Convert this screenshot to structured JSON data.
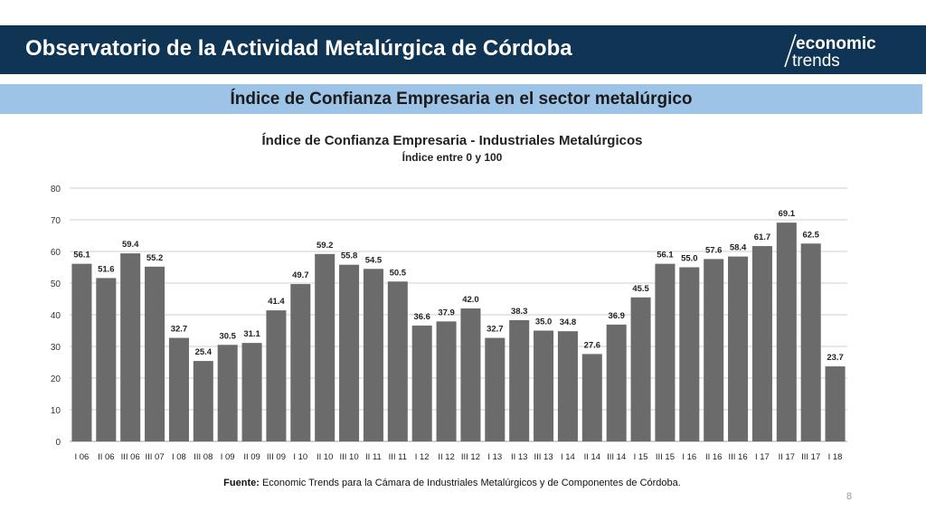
{
  "header": {
    "title": "Observatorio de la Actividad Metalúrgica de Córdoba",
    "logo_top": "economic",
    "logo_bottom": "trends"
  },
  "section_title": "Índice de Confianza Empresaria en el sector metalúrgico",
  "footer": {
    "source_label": "Fuente:",
    "source_text": "Economic Trends para la Cámara de Industriales Metalúrgicos y de Componentes de Córdoba.",
    "page_number": "8"
  },
  "colors": {
    "header_bg": "#0f3454",
    "subtitle_bg": "#9dc3e6",
    "bar": "#6b6b6b"
  },
  "chart_data": {
    "type": "bar",
    "title": "Índice de Confianza Empresaria - Industriales Metalúrgicos",
    "subtitle": "Índice entre 0 y 100",
    "xlabel": "",
    "ylabel": "",
    "ylim": [
      0,
      80
    ],
    "yticks": [
      0,
      10,
      20,
      30,
      40,
      50,
      60,
      70,
      80
    ],
    "grid": true,
    "legend": "none",
    "categories": [
      "I 06",
      "II 06",
      "III 06",
      "III 07",
      "I 08",
      "III 08",
      "I 09",
      "II 09",
      "III 09",
      "I 10",
      "II 10",
      "III 10",
      "II 11",
      "III 11",
      "I 12",
      "II 12",
      "III 12",
      "I 13",
      "II 13",
      "III 13",
      "I 14",
      "II 14",
      "III 14",
      "I 15",
      "III 15",
      "I 16",
      "II 16",
      "III 16",
      "I 17",
      "II 17",
      "III 17",
      "I 18"
    ],
    "values": [
      56.1,
      51.6,
      59.4,
      55.2,
      32.7,
      25.4,
      30.5,
      31.1,
      41.4,
      49.7,
      59.2,
      55.8,
      54.5,
      50.5,
      36.6,
      37.9,
      42.0,
      32.7,
      38.3,
      35.0,
      34.8,
      27.6,
      36.9,
      45.5,
      56.1,
      55.0,
      57.6,
      58.4,
      61.7,
      69.1,
      62.5,
      23.7
    ],
    "labels": [
      "56.1",
      "51.6",
      "59.4",
      "55.2",
      "32.7",
      "25.4",
      "30.5",
      "31.1",
      "41.4",
      "49.7",
      "59.2",
      "55.8",
      "54.5",
      "50.5",
      "36.6",
      "37.9",
      "42.0",
      "32.7",
      "38.3",
      "35.0",
      "34.8",
      "27.6",
      "36.9",
      "45.5",
      "56.1",
      "55.0",
      "57.6",
      "58.4",
      "61.7",
      "69.1",
      "62.5",
      "23.7"
    ]
  }
}
